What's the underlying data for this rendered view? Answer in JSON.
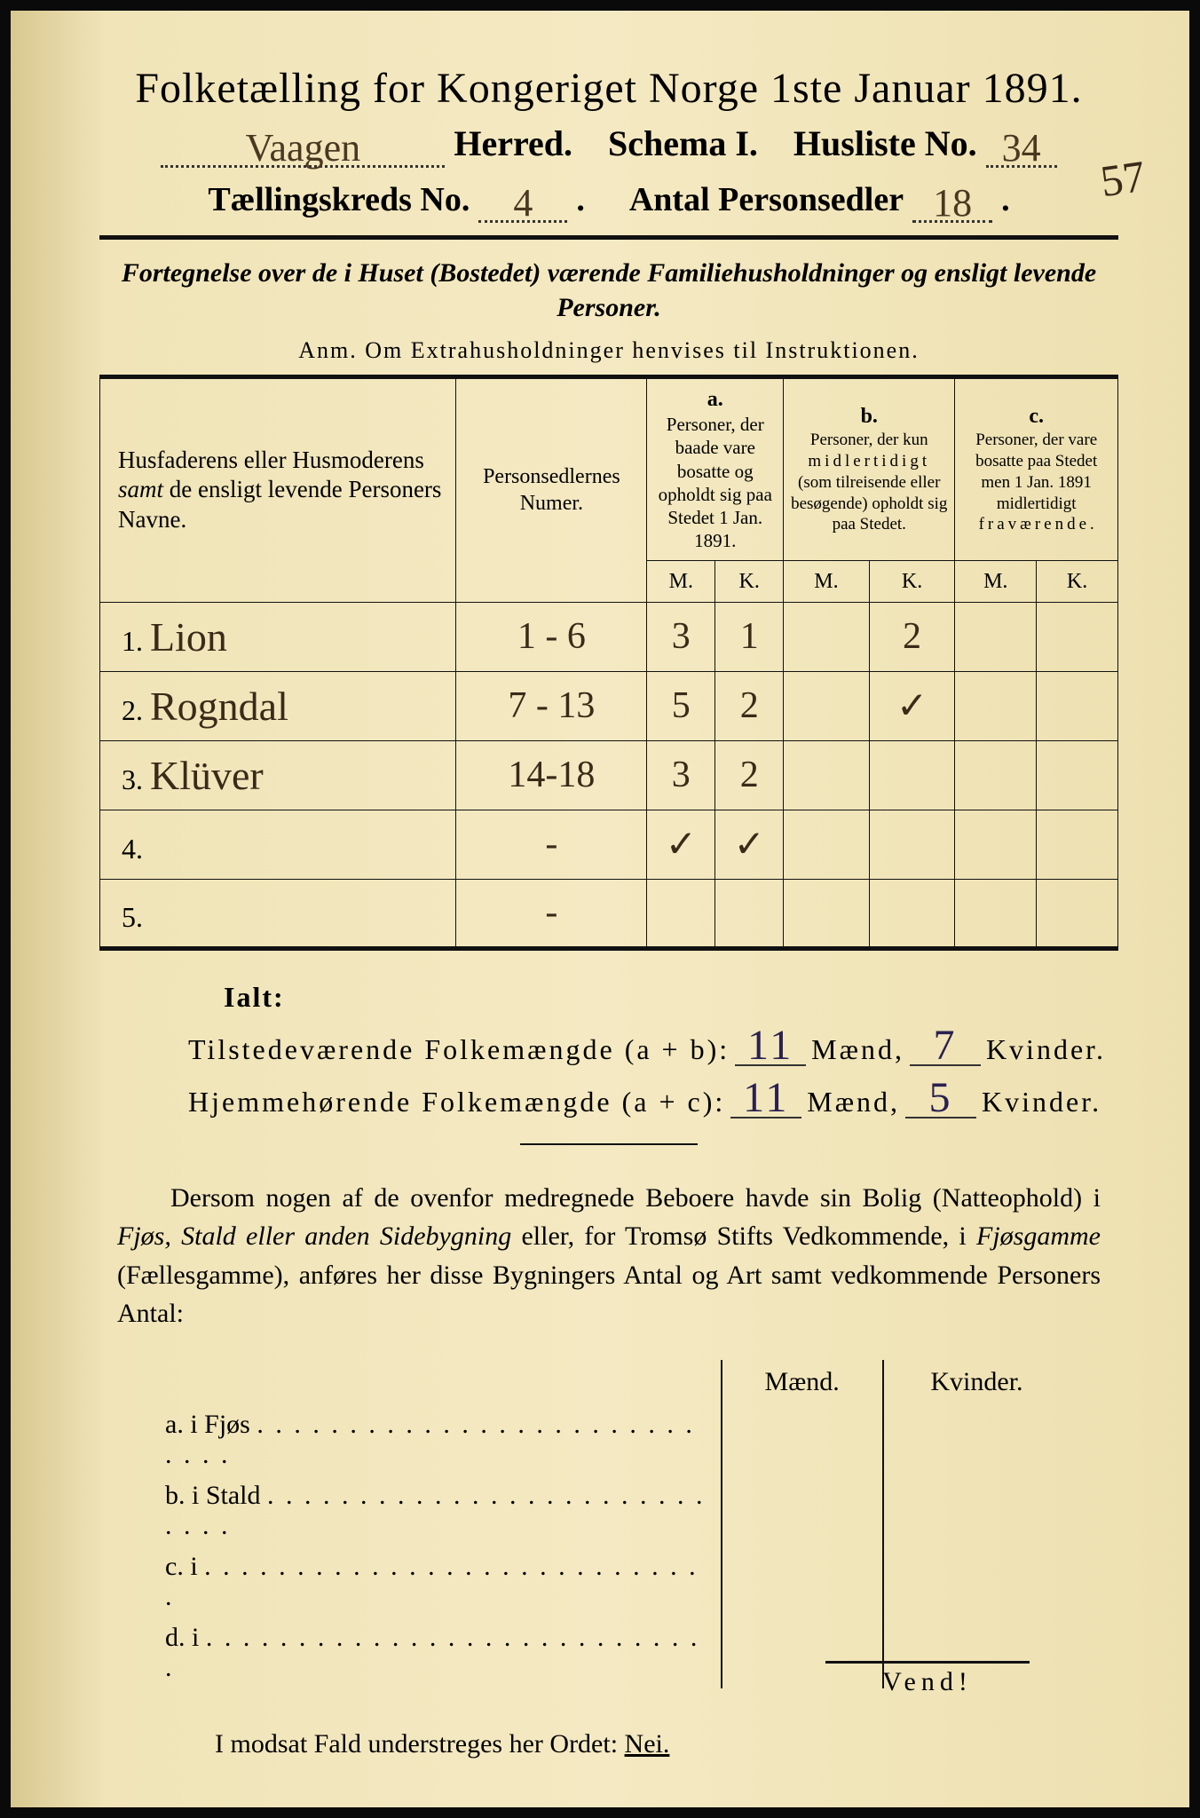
{
  "title": "Folketælling for Kongeriget Norge 1ste Januar 1891.",
  "header": {
    "herred_hand": "Vaagen",
    "herred_label": "Herred.",
    "schema_label": "Schema I.",
    "husliste_label": "Husliste No.",
    "husliste_hand": "34",
    "margin_number": "57",
    "kreds_label": "Tællingskreds No.",
    "kreds_hand": "4",
    "antal_label": "Antal Personsedler",
    "antal_hand": "18"
  },
  "subtitle": "Fortegnelse over de i Huset (Bostedet) værende Familiehusholdninger og ensligt levende Personer.",
  "anm": "Anm. Om Extrahusholdninger henvises til Instruktionen.",
  "table": {
    "col1": "Husfaderens eller Husmoderens samt de ensligt levende Personers Navne.",
    "col2": "Personsedlernes Numer.",
    "colA_top": "a.",
    "colA": "Personer, der baade vare bosatte og opholdt sig paa Stedet 1 Jan. 1891.",
    "colB_top": "b.",
    "colB": "Personer, der kun midlertidigt (som tilreisende eller besøgende) opholdt sig paa Stedet.",
    "colC_top": "c.",
    "colC": "Personer, der vare bosatte paa Stedet men 1 Jan. 1891 midlertidigt fraværende.",
    "M": "M.",
    "K": "K.",
    "rows": [
      {
        "n": "1.",
        "name": "Lion",
        "num": "1 - 6",
        "aM": "3",
        "aK": "1",
        "bM": "",
        "bK": "2",
        "cM": "",
        "cK": ""
      },
      {
        "n": "2.",
        "name": "Rogndal",
        "num": "7 - 13",
        "aM": "5",
        "aK": "2",
        "bM": "",
        "bK": "✓",
        "cM": "",
        "cK": ""
      },
      {
        "n": "3.",
        "name": "Klüver",
        "num": "14-18",
        "aM": "3",
        "aK": "2",
        "bM": "",
        "bK": "",
        "cM": "",
        "cK": ""
      },
      {
        "n": "4.",
        "name": "",
        "num": "-",
        "aM": "✓",
        "aK": "✓",
        "bM": "",
        "bK": "",
        "cM": "",
        "cK": ""
      },
      {
        "n": "5.",
        "name": "",
        "num": "-",
        "aM": "",
        "aK": "",
        "bM": "",
        "bK": "",
        "cM": "",
        "cK": ""
      }
    ]
  },
  "ialt": {
    "title": "Ialt:",
    "line1_label": "Tilstedeværende Folkemængde (a + b):",
    "line1_m": "11",
    "line1_k": "7",
    "line2_label": "Hjemmehørende Folkemængde (a + c):",
    "line2_m": "11",
    "line2_k": "5",
    "maend": "Mænd,",
    "kvinder": "Kvinder."
  },
  "para": "Dersom nogen af de ovenfor medregnede Beboere havde sin Bolig (Natteophold) i Fjøs, Stald eller anden Sidebygning eller, for Tromsø Stifts Vedkommende, i Fjøsgamme (Fællesgamme), anføres her disse Bygningers Antal og Art samt vedkommende Personers Antal:",
  "small": {
    "maend": "Mænd.",
    "kvinder": "Kvinder.",
    "rows": [
      {
        "label": "a.  i      Fjøs"
      },
      {
        "label": "b.  i      Stald"
      },
      {
        "label": "c.  i"
      },
      {
        "label": "d.  i"
      }
    ]
  },
  "nei_line": "I modsat Fald understreges her Ordet:",
  "nei": "Nei.",
  "vend": "Vend!"
}
